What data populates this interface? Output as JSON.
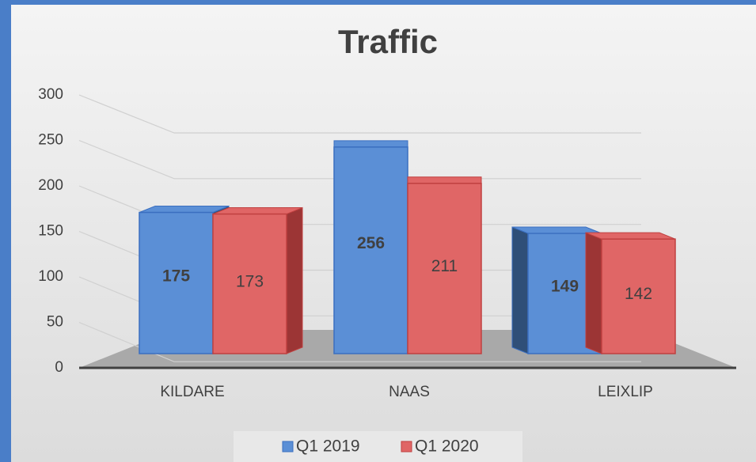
{
  "chart_data": {
    "type": "bar3d",
    "title": "Traffic",
    "categories": [
      "KILDARE",
      "NAAS",
      "LEIXLIP"
    ],
    "series": [
      {
        "name": "Q1 2019",
        "color": "#5b8fd6",
        "values": [
          175,
          256,
          149
        ]
      },
      {
        "name": "Q1 2020",
        "color": "#e06666",
        "values": [
          173,
          211,
          142
        ]
      }
    ],
    "ylim": [
      0,
      300
    ],
    "yticks": [
      0,
      50,
      100,
      150,
      200,
      250,
      300
    ],
    "grid": true,
    "legend": "bottom"
  }
}
